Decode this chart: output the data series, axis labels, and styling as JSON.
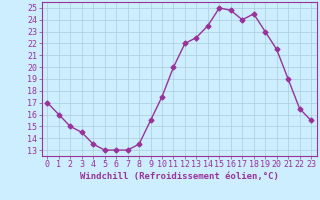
{
  "x": [
    0,
    1,
    2,
    3,
    4,
    5,
    6,
    7,
    8,
    9,
    10,
    11,
    12,
    13,
    14,
    15,
    16,
    17,
    18,
    19,
    20,
    21,
    22,
    23
  ],
  "y": [
    17.0,
    16.0,
    15.0,
    14.5,
    13.5,
    13.0,
    13.0,
    13.0,
    13.5,
    15.5,
    17.5,
    20.0,
    22.0,
    22.5,
    23.5,
    25.0,
    24.8,
    24.0,
    24.5,
    23.0,
    21.5,
    19.0,
    16.5,
    15.5
  ],
  "line_color": "#993399",
  "marker": "D",
  "marker_size": 2.5,
  "bg_color": "#cceeff",
  "grid_color": "#aaccdd",
  "xlabel": "Windchill (Refroidissement éolien,°C)",
  "ylabel_ticks": [
    13,
    14,
    15,
    16,
    17,
    18,
    19,
    20,
    21,
    22,
    23,
    24,
    25
  ],
  "ylim": [
    12.5,
    25.5
  ],
  "xlim": [
    -0.5,
    23.5
  ],
  "xlabel_fontsize": 6.5,
  "tick_fontsize": 6,
  "line_width": 1.0
}
